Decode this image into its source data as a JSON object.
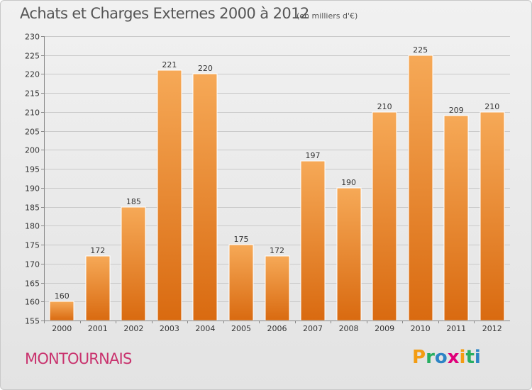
{
  "header": {
    "title": "Achats et Charges Externes 2000 à 2012",
    "subtitle": "(en milliers d'€)"
  },
  "footer": {
    "town": "MONTOURNAIS",
    "brand_letters": [
      {
        "char": "P",
        "color": "#f39c12"
      },
      {
        "char": "r",
        "color": "#27ae60"
      },
      {
        "char": "o",
        "color": "#2c84c5"
      },
      {
        "char": "x",
        "color": "#e0007a"
      },
      {
        "char": "i",
        "color": "#f39c12"
      },
      {
        "char": "t",
        "color": "#27ae60"
      },
      {
        "char": "i",
        "color": "#2c84c5"
      }
    ]
  },
  "chart_data": {
    "type": "bar",
    "categories": [
      "2000",
      "2001",
      "2002",
      "2003",
      "2004",
      "2005",
      "2006",
      "2007",
      "2008",
      "2009",
      "2010",
      "2011",
      "2012"
    ],
    "values": [
      160,
      172,
      185,
      221,
      220,
      175,
      172,
      197,
      190,
      210,
      225,
      209,
      210
    ],
    "ylim": [
      155,
      230
    ],
    "yticks": [
      155,
      160,
      165,
      170,
      175,
      180,
      185,
      190,
      195,
      200,
      205,
      210,
      215,
      220,
      225,
      230
    ],
    "grid": true,
    "bar_color": "#f08a24",
    "bar_color_light": "#f6a957",
    "bar_color_dark": "#d96a10",
    "data_labels": true
  }
}
